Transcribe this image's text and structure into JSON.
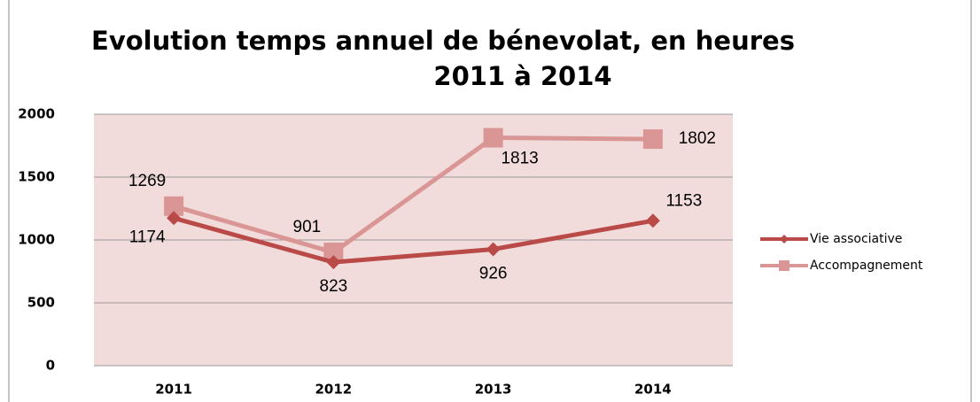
{
  "chart_data": {
    "type": "line",
    "title": "Evolution temps annuel de bénevolat, en heures",
    "subtitle": "2011 à 2014",
    "categories": [
      "2011",
      "2012",
      "2013",
      "2014"
    ],
    "series": [
      {
        "name": "Vie associative",
        "color": "#b94a48",
        "marker": "diamond",
        "values": [
          1174,
          823,
          926,
          1153
        ]
      },
      {
        "name": "Accompagnement",
        "color": "#d99694",
        "marker": "square",
        "values": [
          1269,
          901,
          1813,
          1802
        ]
      }
    ],
    "ylim": [
      0,
      2000
    ],
    "yticks": [
      0,
      500,
      1000,
      1500,
      2000
    ],
    "grid": true,
    "plot_background": "#f2dcdb",
    "legend": "right"
  }
}
